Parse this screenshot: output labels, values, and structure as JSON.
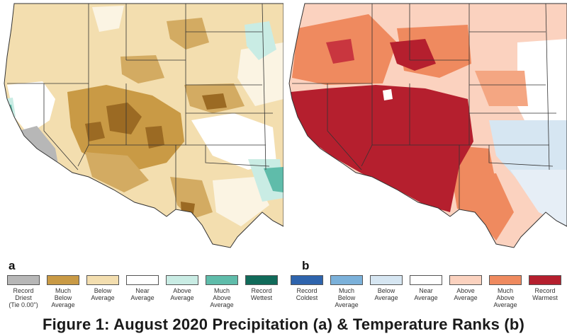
{
  "panels": {
    "a": {
      "letter": "a"
    },
    "b": {
      "letter": "b"
    }
  },
  "legend": {
    "precipitation": [
      {
        "label": "Record\nDriest\n(Tie 0.00\")",
        "color": "#b7b7b7"
      },
      {
        "label": "Much\nBelow\nAverage",
        "color": "#c99a45"
      },
      {
        "label": "Below\nAverage",
        "color": "#f3deaf"
      },
      {
        "label": "Near\nAverage",
        "color": "#ffffff"
      },
      {
        "label": "Above\nAverage",
        "color": "#c9ece4"
      },
      {
        "label": "Much\nAbove\nAverage",
        "color": "#5fbcaa"
      },
      {
        "label": "Record\nWettest",
        "color": "#116b5a"
      }
    ],
    "temperature": [
      {
        "label": "Record\nColdest",
        "color": "#2e64ad"
      },
      {
        "label": "Much\nBelow\nAverage",
        "color": "#7bb1da"
      },
      {
        "label": "Below\nAverage",
        "color": "#d6e6f2"
      },
      {
        "label": "Near\nAverage",
        "color": "#ffffff"
      },
      {
        "label": "Above\nAverage",
        "color": "#fbd2bf"
      },
      {
        "label": "Much\nAbove\nAverage",
        "color": "#ef8a5f"
      },
      {
        "label": "Record\nWarmest",
        "color": "#b51f2e"
      }
    ]
  },
  "caption": "Figure 1: August 2020 Precipitation (a) & Temperature Ranks (b)"
}
